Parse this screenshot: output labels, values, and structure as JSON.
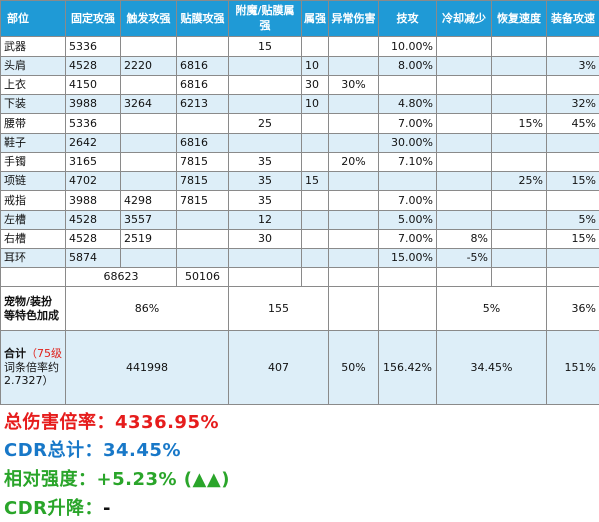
{
  "headers": [
    "部位",
    "固定攻强",
    "触发攻强",
    "贴膜攻强",
    "附魔/贴膜属强",
    "属强",
    "异常伤害",
    "技攻",
    "冷却减少",
    "恢复速度",
    "装备攻速"
  ],
  "rows": [
    [
      "武器",
      "5336",
      "",
      "",
      "15",
      "",
      "",
      "10.00%",
      "",
      "",
      ""
    ],
    [
      "头肩",
      "4528",
      "2220",
      "6816",
      "",
      "10",
      "",
      "8.00%",
      "",
      "",
      "3%"
    ],
    [
      "上衣",
      "4150",
      "",
      "6816",
      "",
      "30",
      "30%",
      "",
      "",
      "",
      ""
    ],
    [
      "下装",
      "3988",
      "3264",
      "6213",
      "",
      "10",
      "",
      "4.80%",
      "",
      "",
      "32%"
    ],
    [
      "腰带",
      "5336",
      "",
      "",
      "25",
      "",
      "",
      "7.00%",
      "",
      "15%",
      "45%"
    ],
    [
      "鞋子",
      "2642",
      "",
      "6816",
      "",
      "",
      "",
      "30.00%",
      "",
      "",
      ""
    ],
    [
      "手镯",
      "3165",
      "",
      "7815",
      "35",
      "",
      "20%",
      "7.10%",
      "",
      "",
      ""
    ],
    [
      "项链",
      "4702",
      "",
      "7815",
      "35",
      "15",
      "",
      "",
      "",
      "25%",
      "15%"
    ],
    [
      "戒指",
      "3988",
      "4298",
      "7815",
      "35",
      "",
      "",
      "7.00%",
      "",
      "",
      ""
    ],
    [
      "左槽",
      "4528",
      "3557",
      "",
      "12",
      "",
      "",
      "5.00%",
      "",
      "",
      "5%"
    ],
    [
      "右槽",
      "4528",
      "2519",
      "",
      "30",
      "",
      "",
      "7.00%",
      "8%",
      "",
      "15%"
    ],
    [
      "耳环",
      "5874",
      "",
      "",
      "",
      "",
      "",
      "15.00%",
      "-5%",
      "",
      ""
    ]
  ],
  "subtotal": {
    "fixed": "68623",
    "film": "50106"
  },
  "pet": {
    "label": "宠物/装扮等特色加成",
    "attack": "86%",
    "elem": "155",
    "cooldown": "5%",
    "speed": "36%"
  },
  "total": {
    "label_prefix": "合计",
    "label_level": "（75级",
    "label_suffix": "词条倍率约2.7327）",
    "attack": "441998",
    "elem": "407",
    "abnormal": "50%",
    "skill": "156.42%",
    "cooldown": "34.45%",
    "speed": "151%"
  },
  "summary": {
    "damage": "总伤害倍率：4336.95%",
    "cdr": "CDR总计：34.45%",
    "strength": "相对强度：+5.23% (▲▲)",
    "cdr_change_label": "CDR升降：",
    "cdr_change_value": "-"
  },
  "colors": {
    "header_bg": "#1f9ad6",
    "alt_row_bg": "#ddeef8",
    "summary_red": "#e61c1c",
    "summary_blue": "#1878c8",
    "summary_green": "#2aa52a"
  }
}
